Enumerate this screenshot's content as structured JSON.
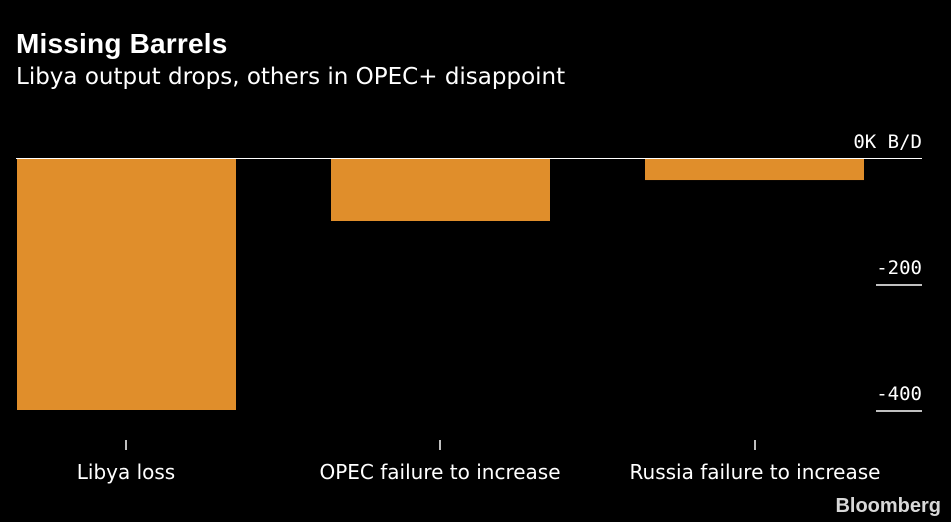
{
  "chart_data": {
    "type": "bar",
    "title": "Missing Barrels",
    "subtitle": "Libya output drops, others in OPEC+ disappoint",
    "unit_label": "0K B/D",
    "categories": [
      "Libya loss",
      "OPEC failure to increase",
      "Russia failure to increase"
    ],
    "values": [
      -400,
      -100,
      -35
    ],
    "ylim": [
      -440,
      0
    ],
    "yticks": [
      {
        "value": 0,
        "label": "0K B/D"
      },
      {
        "value": -200,
        "label": "-200"
      },
      {
        "value": -400,
        "label": "-400"
      }
    ],
    "bar_color": "#e08e2b",
    "background": "#000000",
    "grid": false,
    "legend": "none"
  },
  "footer": {
    "brand": "Bloomberg"
  }
}
